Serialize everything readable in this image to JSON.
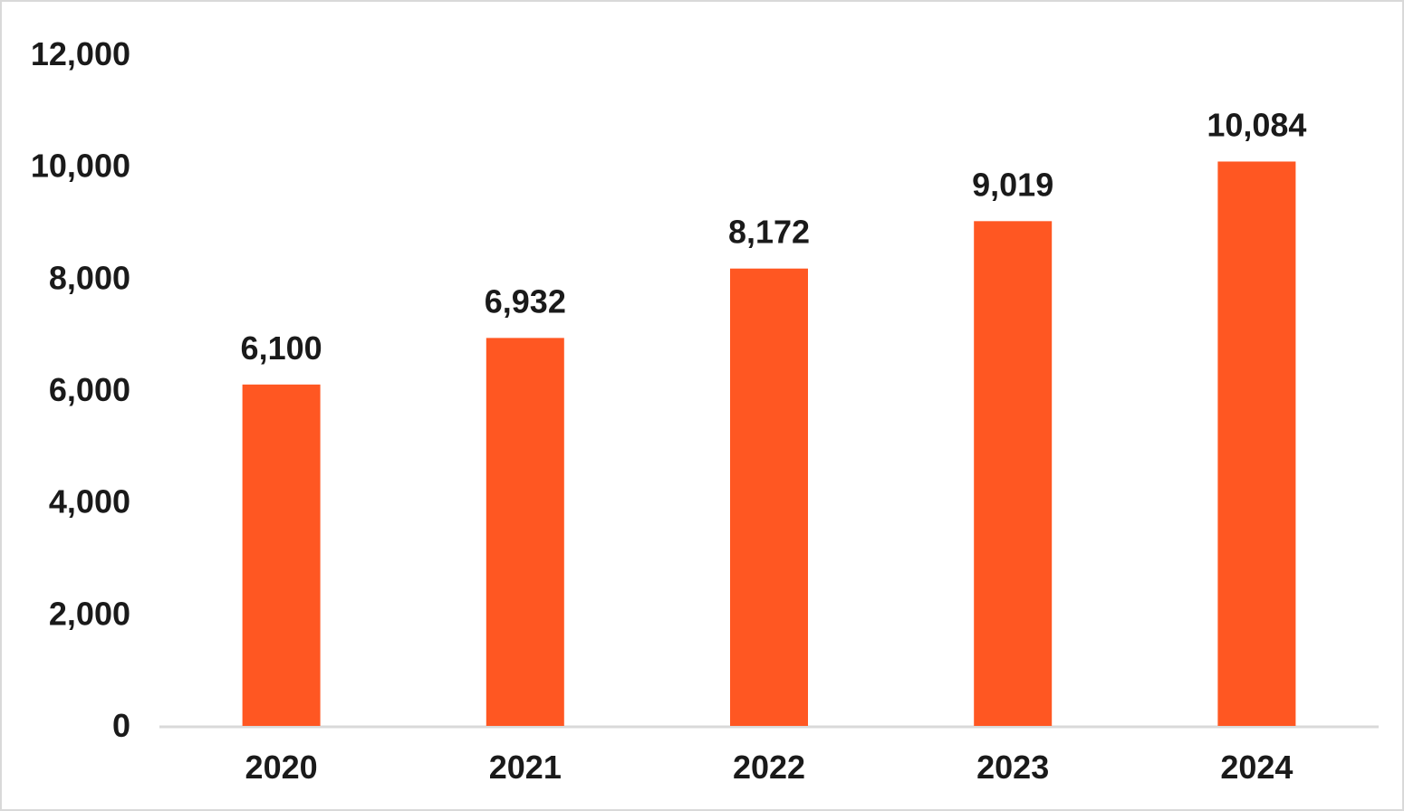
{
  "chart_data": {
    "type": "bar",
    "categories": [
      "2020",
      "2021",
      "2022",
      "2023",
      "2024"
    ],
    "values": [
      6100,
      6932,
      8172,
      9019,
      10084
    ],
    "value_labels": [
      "6,100",
      "6,932",
      "8,172",
      "9,019",
      "10,084"
    ],
    "ylim": [
      0,
      12000
    ],
    "yticks": [
      0,
      2000,
      4000,
      6000,
      8000,
      10000,
      12000
    ],
    "ytick_labels": [
      "0",
      "2,000",
      "4,000",
      "6,000",
      "8,000",
      "10,000",
      "12,000"
    ],
    "grid": false,
    "legend": "none",
    "bar_color": "#ff5722",
    "axis_color": "#d9d9d9"
  }
}
